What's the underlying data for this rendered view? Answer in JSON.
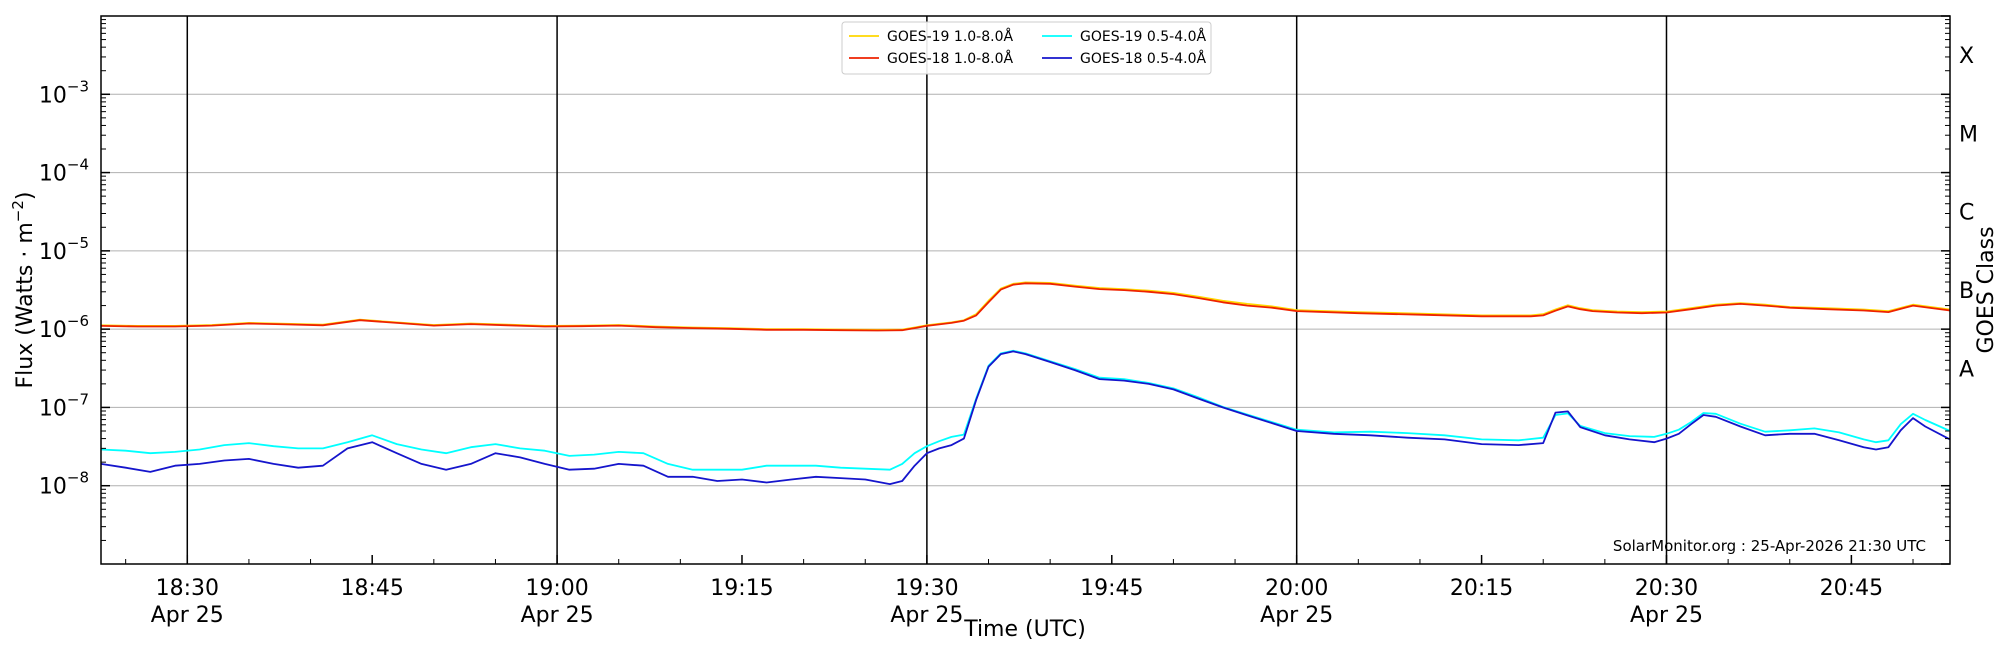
{
  "chart_data": {
    "type": "line",
    "xlabel": "Time (UTC)",
    "ylabel_text": "Flux (Watts · m",
    "ylabel_sup": "−2",
    "ylabel_close": ")",
    "right_label": "GOES Class",
    "credit": "SolarMonitor.org : 25-Apr-2026 21:30 UTC",
    "xlim": [
      "18:23",
      "20:53"
    ],
    "ylim": [
      1e-09,
      0.01
    ],
    "yscale": "log",
    "grid": "horizontal",
    "legend_position": "top-center",
    "x_ticks": [
      {
        "t": "18:30",
        "label": "18:30",
        "sub": "Apr 25",
        "major": true
      },
      {
        "t": "18:45",
        "label": "18:45",
        "sub": "",
        "major": false
      },
      {
        "t": "19:00",
        "label": "19:00",
        "sub": "Apr 25",
        "major": true
      },
      {
        "t": "19:15",
        "label": "19:15",
        "sub": "",
        "major": false
      },
      {
        "t": "19:30",
        "label": "19:30",
        "sub": "Apr 25",
        "major": true
      },
      {
        "t": "19:45",
        "label": "19:45",
        "sub": "",
        "major": false
      },
      {
        "t": "20:00",
        "label": "20:00",
        "sub": "Apr 25",
        "major": true
      },
      {
        "t": "20:15",
        "label": "20:15",
        "sub": "",
        "major": false
      },
      {
        "t": "20:30",
        "label": "20:30",
        "sub": "Apr 25",
        "major": true
      },
      {
        "t": "20:45",
        "label": "20:45",
        "sub": "",
        "major": false
      }
    ],
    "y_ticks": [
      {
        "value": 0.001,
        "base": "10",
        "exp": "−3"
      },
      {
        "value": 0.0001,
        "base": "10",
        "exp": "−4"
      },
      {
        "value": 1e-05,
        "base": "10",
        "exp": "−5"
      },
      {
        "value": 1e-06,
        "base": "10",
        "exp": "−6"
      },
      {
        "value": 1e-07,
        "base": "10",
        "exp": "−7"
      },
      {
        "value": 1e-08,
        "base": "10",
        "exp": "−8"
      }
    ],
    "goes_classes": [
      {
        "label": "X",
        "value": 0.001
      },
      {
        "label": "M",
        "value": 0.0001
      },
      {
        "label": "C",
        "value": 1e-05
      },
      {
        "label": "B",
        "value": 1e-06
      },
      {
        "label": "A",
        "value": 1e-07
      }
    ],
    "series": [
      {
        "name": "GOES-19 1.0-8.0Å",
        "color": "#ffd700",
        "x": [
          "18:23",
          "18:26",
          "18:29",
          "18:32",
          "18:35",
          "18:38",
          "18:41",
          "18:44",
          "18:47",
          "18:50",
          "18:53",
          "18:56",
          "18:59",
          "19:02",
          "19:05",
          "19:08",
          "19:11",
          "19:14",
          "19:17",
          "19:20",
          "19:23",
          "19:26",
          "19:28",
          "19:29",
          "19:30",
          "19:31",
          "19:32",
          "19:33",
          "19:34",
          "19:35",
          "19:36",
          "19:37",
          "19:38",
          "19:40",
          "19:42",
          "19:44",
          "19:46",
          "19:48",
          "19:50",
          "19:52",
          "19:54",
          "19:56",
          "19:58",
          "20:00",
          "20:05",
          "20:10",
          "20:15",
          "20:19",
          "20:20",
          "20:21",
          "20:22",
          "20:23",
          "20:24",
          "20:26",
          "20:28",
          "20:30",
          "20:32",
          "20:34",
          "20:36",
          "20:38",
          "20:40",
          "20:43",
          "20:46",
          "20:48",
          "20:50",
          "20:53"
        ],
        "y": [
          1.12e-06,
          1.1e-06,
          1.1e-06,
          1.13e-06,
          1.2e-06,
          1.17e-06,
          1.14e-06,
          1.32e-06,
          1.22e-06,
          1.13e-06,
          1.18e-06,
          1.14e-06,
          1.1e-06,
          1.11e-06,
          1.13e-06,
          1.08e-06,
          1.05e-06,
          1.03e-06,
          1e-06,
          1e-06,
          9.9e-07,
          9.8e-07,
          9.9e-07,
          1.05e-06,
          1.12e-06,
          1.17e-06,
          1.22e-06,
          1.3e-06,
          1.55e-06,
          2.3e-06,
          3.3e-06,
          3.8e-06,
          3.95e-06,
          3.9e-06,
          3.6e-06,
          3.35e-06,
          3.25e-06,
          3.1e-06,
          2.9e-06,
          2.6e-06,
          2.3e-06,
          2.1e-06,
          1.95e-06,
          1.75e-06,
          1.65e-06,
          1.58e-06,
          1.5e-06,
          1.5e-06,
          1.55e-06,
          1.78e-06,
          2.02e-06,
          1.85e-06,
          1.75e-06,
          1.68e-06,
          1.65e-06,
          1.68e-06,
          1.85e-06,
          2.05e-06,
          2.15e-06,
          2.05e-06,
          1.92e-06,
          1.85e-06,
          1.78e-06,
          1.7e-06,
          2.05e-06,
          1.78e-06
        ]
      },
      {
        "name": "GOES-18 1.0-8.0Å",
        "color": "#ee2200",
        "x": [
          "18:23",
          "18:26",
          "18:29",
          "18:32",
          "18:35",
          "18:38",
          "18:41",
          "18:44",
          "18:47",
          "18:50",
          "18:53",
          "18:56",
          "18:59",
          "19:02",
          "19:05",
          "19:08",
          "19:11",
          "19:14",
          "19:17",
          "19:20",
          "19:23",
          "19:26",
          "19:28",
          "19:29",
          "19:30",
          "19:31",
          "19:32",
          "19:33",
          "19:34",
          "19:35",
          "19:36",
          "19:37",
          "19:38",
          "19:40",
          "19:42",
          "19:44",
          "19:46",
          "19:48",
          "19:50",
          "19:52",
          "19:54",
          "19:56",
          "19:58",
          "20:00",
          "20:05",
          "20:10",
          "20:15",
          "20:19",
          "20:20",
          "20:21",
          "20:22",
          "20:23",
          "20:24",
          "20:26",
          "20:28",
          "20:30",
          "20:32",
          "20:34",
          "20:36",
          "20:38",
          "20:40",
          "20:43",
          "20:46",
          "20:48",
          "20:50",
          "20:53"
        ],
        "y": [
          1.1e-06,
          1.08e-06,
          1.08e-06,
          1.11e-06,
          1.18e-06,
          1.15e-06,
          1.12e-06,
          1.3e-06,
          1.2e-06,
          1.11e-06,
          1.16e-06,
          1.12e-06,
          1.08e-06,
          1.09e-06,
          1.11e-06,
          1.06e-06,
          1.03e-06,
          1.01e-06,
          9.8e-07,
          9.8e-07,
          9.7e-07,
          9.6e-07,
          9.7e-07,
          1.03e-06,
          1.1e-06,
          1.15e-06,
          1.2e-06,
          1.28e-06,
          1.5e-06,
          2.2e-06,
          3.2e-06,
          3.7e-06,
          3.85e-06,
          3.8e-06,
          3.5e-06,
          3.25e-06,
          3.15e-06,
          3e-06,
          2.8e-06,
          2.5e-06,
          2.2e-06,
          2e-06,
          1.88e-06,
          1.7e-06,
          1.6e-06,
          1.53e-06,
          1.46e-06,
          1.46e-06,
          1.5e-06,
          1.72e-06,
          1.95e-06,
          1.8e-06,
          1.7e-06,
          1.63e-06,
          1.6e-06,
          1.63e-06,
          1.8e-06,
          2e-06,
          2.1e-06,
          2e-06,
          1.88e-06,
          1.8e-06,
          1.73e-06,
          1.65e-06,
          2e-06,
          1.73e-06
        ]
      },
      {
        "name": "GOES-19 0.5-4.0Å",
        "color": "#00ffff",
        "x": [
          "18:23",
          "18:25",
          "18:27",
          "18:29",
          "18:31",
          "18:33",
          "18:35",
          "18:37",
          "18:39",
          "18:41",
          "18:43",
          "18:45",
          "18:47",
          "18:49",
          "18:51",
          "18:53",
          "18:55",
          "18:57",
          "18:59",
          "19:01",
          "19:03",
          "19:05",
          "19:07",
          "19:09",
          "19:11",
          "19:13",
          "19:15",
          "19:17",
          "19:19",
          "19:21",
          "19:23",
          "19:25",
          "19:27",
          "19:28",
          "19:29",
          "19:30",
          "19:31",
          "19:32",
          "19:33",
          "19:34",
          "19:35",
          "19:36",
          "19:37",
          "19:38",
          "19:40",
          "19:42",
          "19:44",
          "19:46",
          "19:48",
          "19:50",
          "19:52",
          "19:54",
          "19:56",
          "19:58",
          "20:00",
          "20:03",
          "20:06",
          "20:09",
          "20:12",
          "20:15",
          "20:18",
          "20:20",
          "20:21",
          "20:22",
          "20:23",
          "20:25",
          "20:27",
          "20:29",
          "20:30",
          "20:31",
          "20:32",
          "20:33",
          "20:34",
          "20:36",
          "20:38",
          "20:40",
          "20:42",
          "20:44",
          "20:46",
          "20:47",
          "20:48",
          "20:49",
          "20:50",
          "20:51",
          "20:53"
        ],
        "y": [
          2.9e-08,
          2.8e-08,
          2.6e-08,
          2.7e-08,
          2.9e-08,
          3.3e-08,
          3.5e-08,
          3.2e-08,
          3e-08,
          3e-08,
          3.6e-08,
          4.4e-08,
          3.4e-08,
          2.9e-08,
          2.6e-08,
          3.1e-08,
          3.4e-08,
          3e-08,
          2.8e-08,
          2.4e-08,
          2.5e-08,
          2.7e-08,
          2.6e-08,
          1.9e-08,
          1.6e-08,
          1.6e-08,
          1.6e-08,
          1.8e-08,
          1.8e-08,
          1.8e-08,
          1.7e-08,
          1.65e-08,
          1.6e-08,
          1.9e-08,
          2.6e-08,
          3.2e-08,
          3.7e-08,
          4.2e-08,
          4.5e-08,
          1.3e-07,
          3.4e-07,
          4.9e-07,
          5.3e-07,
          4.9e-07,
          3.9e-07,
          3.1e-07,
          2.4e-07,
          2.3e-07,
          2.05e-07,
          1.75e-07,
          1.35e-07,
          1.02e-07,
          8.1e-08,
          6.5e-08,
          5.2e-08,
          4.8e-08,
          4.9e-08,
          4.7e-08,
          4.4e-08,
          3.9e-08,
          3.8e-08,
          4.1e-08,
          8e-08,
          8.4e-08,
          5.8e-08,
          4.7e-08,
          4.3e-08,
          4.2e-08,
          4.6e-08,
          5.2e-08,
          6.5e-08,
          8.5e-08,
          8.3e-08,
          6.2e-08,
          4.9e-08,
          5.1e-08,
          5.4e-08,
          4.8e-08,
          3.9e-08,
          3.6e-08,
          3.8e-08,
          6.1e-08,
          8.3e-08,
          6.9e-08,
          5e-08
        ]
      },
      {
        "name": "GOES-18 0.5-4.0Å",
        "color": "#1515cc",
        "x": [
          "18:23",
          "18:25",
          "18:27",
          "18:29",
          "18:31",
          "18:33",
          "18:35",
          "18:37",
          "18:39",
          "18:41",
          "18:43",
          "18:45",
          "18:47",
          "18:49",
          "18:51",
          "18:53",
          "18:55",
          "18:57",
          "18:59",
          "19:01",
          "19:03",
          "19:05",
          "19:07",
          "19:09",
          "19:11",
          "19:13",
          "19:15",
          "19:17",
          "19:19",
          "19:21",
          "19:23",
          "19:25",
          "19:27",
          "19:28",
          "19:29",
          "19:30",
          "19:31",
          "19:32",
          "19:33",
          "19:34",
          "19:35",
          "19:36",
          "19:37",
          "19:38",
          "19:40",
          "19:42",
          "19:44",
          "19:46",
          "19:48",
          "19:50",
          "19:52",
          "19:54",
          "19:56",
          "19:58",
          "20:00",
          "20:03",
          "20:06",
          "20:09",
          "20:12",
          "20:15",
          "20:18",
          "20:20",
          "20:21",
          "20:22",
          "20:23",
          "20:25",
          "20:27",
          "20:29",
          "20:30",
          "20:31",
          "20:32",
          "20:33",
          "20:34",
          "20:36",
          "20:38",
          "20:40",
          "20:42",
          "20:44",
          "20:46",
          "20:47",
          "20:48",
          "20:49",
          "20:50",
          "20:51",
          "20:53"
        ],
        "y": [
          1.9e-08,
          1.7e-08,
          1.5e-08,
          1.8e-08,
          1.9e-08,
          2.1e-08,
          2.2e-08,
          1.9e-08,
          1.7e-08,
          1.8e-08,
          3e-08,
          3.6e-08,
          2.6e-08,
          1.9e-08,
          1.6e-08,
          1.9e-08,
          2.6e-08,
          2.3e-08,
          1.9e-08,
          1.6e-08,
          1.65e-08,
          1.9e-08,
          1.8e-08,
          1.3e-08,
          1.3e-08,
          1.15e-08,
          1.2e-08,
          1.1e-08,
          1.2e-08,
          1.3e-08,
          1.25e-08,
          1.2e-08,
          1.05e-08,
          1.15e-08,
          1.8e-08,
          2.6e-08,
          3e-08,
          3.3e-08,
          4e-08,
          1.25e-07,
          3.3e-07,
          4.8e-07,
          5.2e-07,
          4.8e-07,
          3.8e-07,
          3e-07,
          2.3e-07,
          2.2e-07,
          2e-07,
          1.7e-07,
          1.3e-07,
          1e-07,
          7.9e-08,
          6.3e-08,
          5e-08,
          4.6e-08,
          4.4e-08,
          4.1e-08,
          3.9e-08,
          3.4e-08,
          3.3e-08,
          3.5e-08,
          8.6e-08,
          8.9e-08,
          5.6e-08,
          4.4e-08,
          3.9e-08,
          3.6e-08,
          4e-08,
          4.6e-08,
          6.1e-08,
          8e-08,
          7.6e-08,
          5.7e-08,
          4.4e-08,
          4.6e-08,
          4.6e-08,
          3.8e-08,
          3.1e-08,
          2.9e-08,
          3.1e-08,
          5.1e-08,
          7.3e-08,
          5.7e-08,
          3.9e-08
        ]
      }
    ]
  }
}
